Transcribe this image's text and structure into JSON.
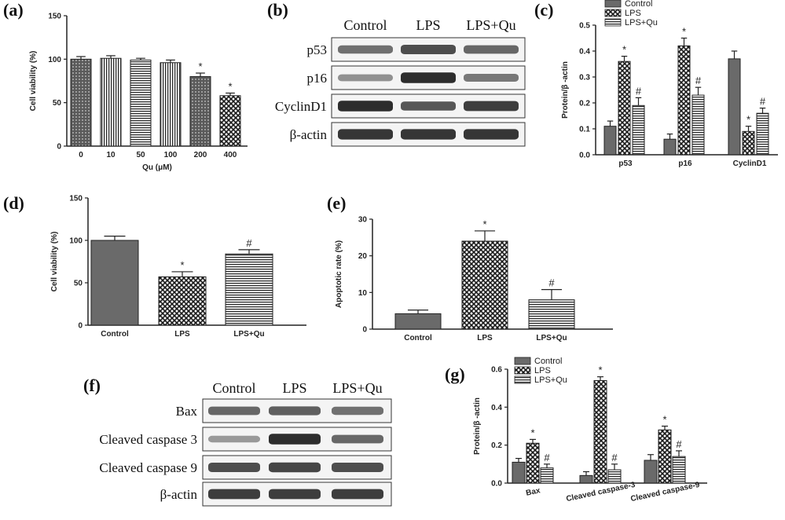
{
  "panel_labels": {
    "a": "(a)",
    "b": "(b)",
    "c": "(c)",
    "d": "(d)",
    "e": "(e)",
    "f": "(f)",
    "g": "(g)"
  },
  "colors": {
    "control": "#6f6f6f",
    "lps": "#2b2b2b",
    "quc": "#1f1f1f",
    "axis": "#222222"
  },
  "chart_data": [
    {
      "panel": "a",
      "type": "bar",
      "title": "",
      "xlabel": "Qu (μM)",
      "ylabel": "Cell viability (%)",
      "ylim": [
        0,
        150
      ],
      "yticks": [
        0,
        50,
        100,
        150
      ],
      "categories": [
        "0",
        "10",
        "50",
        "100",
        "200",
        "400"
      ],
      "values": [
        100,
        101,
        99,
        96,
        80,
        58
      ],
      "errors": [
        3,
        3,
        2,
        3,
        4,
        3
      ],
      "annotations": [
        "",
        "",
        "",
        "",
        "*",
        "*"
      ],
      "patterns": [
        "dots",
        "vlines",
        "hlines",
        "vlines",
        "dots",
        "check"
      ]
    },
    {
      "panel": "c",
      "type": "bar",
      "title": "",
      "xlabel": "",
      "ylabel": "Protein/β -actin",
      "ylim": [
        0,
        0.5
      ],
      "yticks": [
        "0.0",
        "0.1",
        "0.2",
        "0.3",
        "0.4",
        "0.5"
      ],
      "categories": [
        "p53",
        "p16",
        "CyclinD1"
      ],
      "legend": [
        "Control",
        "LPS",
        "LPS+Qu"
      ],
      "series": [
        {
          "name": "Control",
          "values": [
            0.11,
            0.06,
            0.37
          ],
          "errors": [
            0.02,
            0.02,
            0.03
          ],
          "annotations": [
            "",
            "",
            ""
          ]
        },
        {
          "name": "LPS",
          "values": [
            0.36,
            0.42,
            0.09
          ],
          "errors": [
            0.02,
            0.03,
            0.02
          ],
          "annotations": [
            "*",
            "*",
            "*"
          ]
        },
        {
          "name": "LPS+Qu",
          "values": [
            0.19,
            0.23,
            0.16
          ],
          "errors": [
            0.03,
            0.03,
            0.02
          ],
          "annotations": [
            "#",
            "#",
            "#"
          ]
        }
      ]
    },
    {
      "panel": "d",
      "type": "bar",
      "title": "",
      "xlabel": "",
      "ylabel": "Cell viability (%)",
      "ylim": [
        0,
        150
      ],
      "yticks": [
        0,
        50,
        100,
        150
      ],
      "categories": [
        "Control",
        "LPS",
        "LPS+Qu"
      ],
      "values": [
        100,
        57,
        84
      ],
      "errors": [
        5,
        6,
        5
      ],
      "annotations": [
        "",
        "*",
        "#"
      ],
      "patterns": [
        "solid",
        "check",
        "hlines"
      ]
    },
    {
      "panel": "e",
      "type": "bar",
      "title": "",
      "xlabel": "",
      "ylabel": "Apoptotic rate (%)",
      "ylim": [
        0,
        30
      ],
      "yticks": [
        0,
        10,
        20,
        30
      ],
      "categories": [
        "Control",
        "LPS",
        "LPS+Qu"
      ],
      "values": [
        4.2,
        24,
        8
      ],
      "errors": [
        1,
        2.8,
        2.8
      ],
      "annotations": [
        "",
        "*",
        "#"
      ],
      "patterns": [
        "solid",
        "check",
        "hlines"
      ]
    },
    {
      "panel": "g",
      "type": "bar",
      "title": "",
      "xlabel": "",
      "ylabel": "Protein/β -actin",
      "ylim": [
        0,
        0.6
      ],
      "yticks": [
        "0.0",
        "0.2",
        "0.4",
        "0.6"
      ],
      "categories": [
        "Bax",
        "Cleaved caspase-3",
        "Cleaved caspase-9"
      ],
      "legend": [
        "Control",
        "LPS",
        "LPS+Qu"
      ],
      "series": [
        {
          "name": "Control",
          "values": [
            0.11,
            0.04,
            0.12
          ],
          "errors": [
            0.02,
            0.02,
            0.03
          ],
          "annotations": [
            "",
            "",
            ""
          ]
        },
        {
          "name": "LPS",
          "values": [
            0.21,
            0.54,
            0.28
          ],
          "errors": [
            0.02,
            0.02,
            0.02
          ],
          "annotations": [
            "*",
            "*",
            "*"
          ]
        },
        {
          "name": "LPS+Qu",
          "values": [
            0.08,
            0.07,
            0.14
          ],
          "errors": [
            0.02,
            0.03,
            0.03
          ],
          "annotations": [
            "#",
            "#",
            "#"
          ]
        }
      ]
    }
  ],
  "blots": [
    {
      "panel": "b",
      "columns": [
        "Control",
        "LPS",
        "LPS+Qu"
      ],
      "rows": [
        {
          "label": "p53",
          "intensity": [
            0.55,
            0.75,
            0.6
          ]
        },
        {
          "label": "p16",
          "intensity": [
            0.35,
            0.95,
            0.5
          ]
        },
        {
          "label": "CyclinD1",
          "intensity": [
            0.95,
            0.7,
            0.85
          ]
        },
        {
          "label": "β-actin",
          "intensity": [
            0.9,
            0.9,
            0.9
          ]
        }
      ]
    },
    {
      "panel": "f",
      "columns": [
        "Control",
        "LPS",
        "LPS+Qu"
      ],
      "rows": [
        {
          "label": "Bax",
          "intensity": [
            0.6,
            0.65,
            0.55
          ]
        },
        {
          "label": "Cleaved caspase 3",
          "intensity": [
            0.3,
            0.95,
            0.6
          ]
        },
        {
          "label": "Cleaved caspase 9",
          "intensity": [
            0.75,
            0.8,
            0.75
          ]
        },
        {
          "label": "β-actin",
          "intensity": [
            0.85,
            0.85,
            0.85
          ]
        }
      ]
    }
  ]
}
